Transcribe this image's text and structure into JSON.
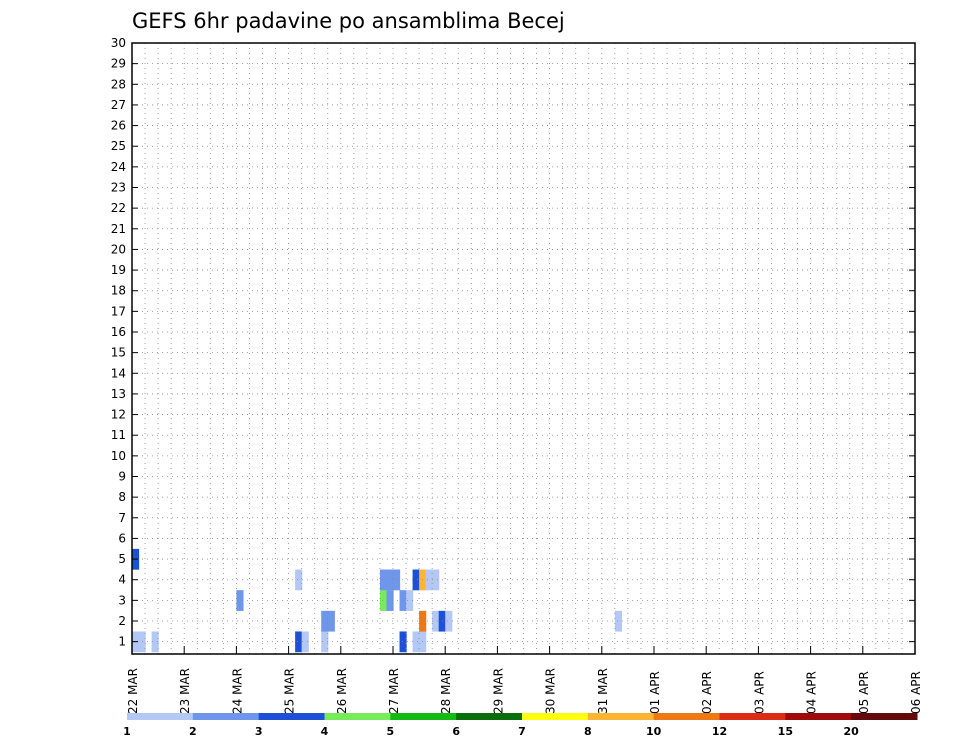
{
  "chart_data": {
    "type": "heatmap",
    "title": "GEFS 6hr padavine po ansamblima Becej",
    "xlabel": "",
    "ylabel": "",
    "x_tick_labels": [
      "22 MAR",
      "23 MAR",
      "24 MAR",
      "25 MAR",
      "26 MAR",
      "27 MAR",
      "28 MAR",
      "29 MAR",
      "30 MAR",
      "31 MAR",
      "01 APR",
      "02 APR",
      "03 APR",
      "04 APR",
      "05 APR",
      "06 APR"
    ],
    "y_range": [
      1,
      30
    ],
    "y_ticks": [
      1,
      2,
      3,
      4,
      5,
      6,
      7,
      8,
      9,
      10,
      11,
      12,
      13,
      14,
      15,
      16,
      17,
      18,
      19,
      20,
      21,
      22,
      23,
      24,
      25,
      26,
      27,
      28,
      29,
      30
    ],
    "grid": true,
    "colorbar": {
      "position": "bottom",
      "levels": [
        "1",
        "2",
        "3",
        "4",
        "5",
        "6",
        "7",
        "8",
        "10",
        "12",
        "15",
        "20"
      ],
      "colors": [
        "#b4c8f5",
        "#6e96eb",
        "#1e50d7",
        "#78eb5a",
        "#14b914",
        "#0a6e0a",
        "#ffff0f",
        "#ffb432",
        "#f07814",
        "#dc2d14",
        "#a00a0a",
        "#640a0a"
      ]
    },
    "cell_values": [
      [
        1,
        1,
        0,
        1,
        0,
        0,
        0,
        0,
        0,
        0,
        0,
        0,
        0,
        0,
        0,
        0,
        0,
        0,
        0,
        0,
        0,
        0,
        0,
        0,
        0,
        3,
        1,
        0,
        0,
        1,
        0,
        0,
        0,
        0,
        0,
        0,
        0,
        0,
        0,
        0,
        0,
        3,
        0,
        1,
        1,
        0,
        0,
        0,
        0,
        0,
        0,
        0,
        0,
        0,
        0,
        0,
        0,
        0,
        0,
        0,
        0,
        0,
        0,
        0,
        0,
        0,
        0,
        0,
        0,
        0,
        0,
        0,
        0,
        0,
        0,
        0,
        0,
        0,
        0,
        0,
        0,
        0,
        0,
        0,
        0,
        0,
        0,
        0,
        0,
        0,
        0,
        0,
        0,
        0,
        0,
        0,
        0,
        0,
        0,
        0,
        0,
        0,
        0,
        0,
        0,
        0,
        0,
        0,
        0,
        0,
        0,
        0,
        0,
        0,
        0,
        0,
        0,
        0,
        0,
        0,
        0
      ],
      [
        0,
        0,
        0,
        0,
        0,
        0,
        0,
        0,
        0,
        0,
        0,
        0,
        0,
        0,
        0,
        0,
        0,
        0,
        0,
        0,
        0,
        0,
        0,
        0,
        0,
        0,
        0,
        0,
        0,
        2,
        2,
        0,
        0,
        0,
        0,
        0,
        0,
        0,
        0,
        0,
        0,
        0,
        0,
        0,
        9,
        0,
        1,
        3,
        1,
        0,
        0,
        0,
        0,
        0,
        0,
        0,
        0,
        0,
        0,
        0,
        0,
        0,
        0,
        0,
        0,
        0,
        0,
        0,
        0,
        0,
        0,
        0,
        0,
        0,
        1,
        0,
        0,
        0,
        0,
        0,
        0,
        0,
        0,
        0,
        0,
        0,
        0,
        0,
        0,
        0,
        0,
        0,
        0,
        0,
        0,
        0,
        0,
        0,
        0,
        0,
        0,
        0,
        0,
        0,
        0,
        0,
        0,
        0,
        0,
        0,
        0,
        0,
        0,
        0,
        0,
        0,
        0,
        0,
        0,
        0,
        0
      ],
      [
        0,
        0,
        0,
        0,
        0,
        0,
        0,
        0,
        0,
        0,
        0,
        0,
        0,
        0,
        0,
        0,
        2,
        0,
        0,
        0,
        0,
        0,
        0,
        0,
        0,
        0,
        0,
        0,
        0,
        0,
        0,
        0,
        0,
        0,
        0,
        0,
        0,
        0,
        4,
        2,
        0,
        2,
        1,
        0,
        0,
        0,
        0,
        0,
        0,
        0,
        0,
        0,
        0,
        0,
        0,
        0,
        0,
        0,
        0,
        0,
        0,
        0,
        0,
        0,
        0,
        0,
        0,
        0,
        0,
        0,
        0,
        0,
        0,
        0,
        0,
        0,
        0,
        0,
        0,
        0,
        0,
        0,
        0,
        0,
        0,
        0,
        0,
        0,
        0,
        0,
        0,
        0,
        0,
        0,
        0,
        0,
        0,
        0,
        0,
        0,
        0,
        0,
        0,
        0,
        0,
        0,
        0,
        0,
        0,
        0,
        0,
        0,
        0,
        0,
        0,
        0,
        0,
        0,
        0,
        0,
        0
      ],
      [
        0,
        0,
        0,
        0,
        0,
        0,
        0,
        0,
        0,
        0,
        0,
        0,
        0,
        0,
        0,
        0,
        0,
        0,
        0,
        0,
        0,
        0,
        0,
        0,
        0,
        1,
        0,
        0,
        0,
        0,
        0,
        0,
        0,
        0,
        0,
        0,
        0,
        0,
        2,
        2,
        2,
        0,
        0,
        3,
        8,
        1,
        1,
        0,
        0,
        0,
        0,
        0,
        0,
        0,
        0,
        0,
        0,
        0,
        0,
        0,
        0,
        0,
        0,
        0,
        0,
        0,
        0,
        0,
        0,
        0,
        0,
        0,
        0,
        0,
        0,
        0,
        0,
        0,
        0,
        0,
        0,
        0,
        0,
        0,
        0,
        0,
        0,
        0,
        0,
        0,
        0,
        0,
        0,
        0,
        0,
        0,
        0,
        0,
        0,
        0,
        0,
        0,
        0,
        0,
        0,
        0,
        0,
        0,
        0,
        0,
        0,
        0,
        0,
        0,
        0,
        0,
        0,
        0,
        0,
        0,
        0
      ],
      [
        3,
        0,
        0,
        0,
        0,
        0,
        0,
        0,
        0,
        0,
        0,
        0,
        0,
        0,
        0,
        0,
        0,
        0,
        0,
        0,
        0,
        0,
        0,
        0,
        0,
        0,
        0,
        0,
        0,
        0,
        0,
        0,
        0,
        0,
        0,
        0,
        0,
        0,
        0,
        0,
        0,
        0,
        0,
        0,
        0,
        0,
        0,
        0,
        0,
        0,
        0,
        0,
        0,
        0,
        0,
        0,
        0,
        0,
        0,
        0,
        0,
        0,
        0,
        0,
        0,
        0,
        0,
        0,
        0,
        0,
        0,
        0,
        0,
        0,
        0,
        0,
        0,
        0,
        0,
        0,
        0,
        0,
        0,
        0,
        0,
        0,
        0,
        0,
        0,
        0,
        0,
        0,
        0,
        0,
        0,
        0,
        0,
        0,
        0,
        0,
        0,
        0,
        0,
        0,
        0,
        0,
        0,
        0,
        0,
        0,
        0,
        0,
        0,
        0,
        0,
        0,
        0,
        0,
        0,
        0,
        0
      ]
    ]
  }
}
